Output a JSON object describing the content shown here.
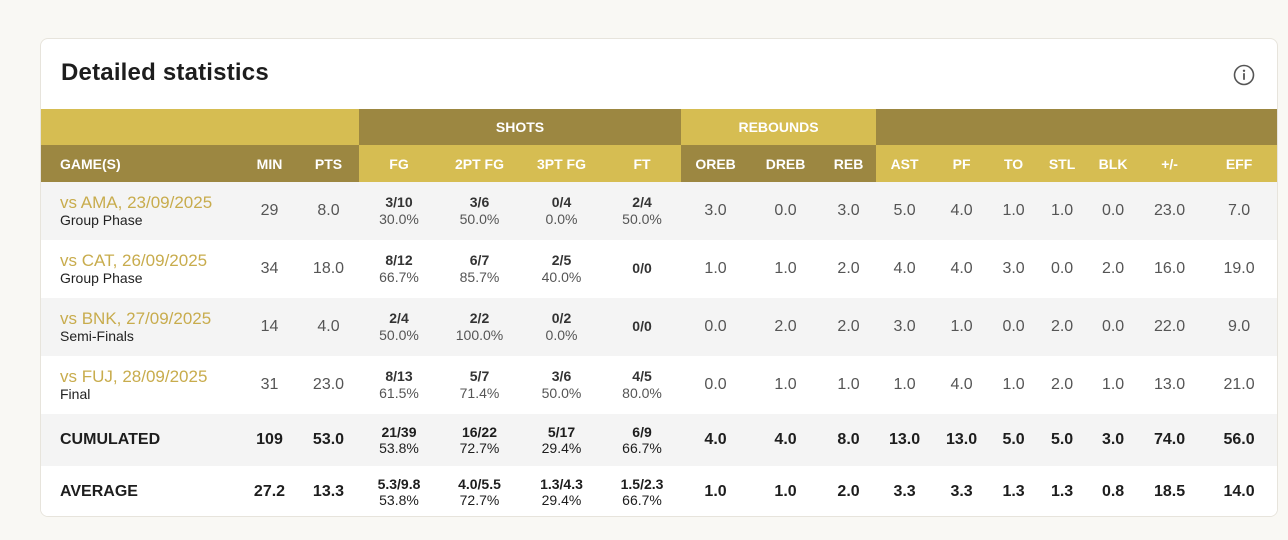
{
  "title": "Detailed statistics",
  "groups": {
    "shots": "SHOTS",
    "rebounds": "REBOUNDS"
  },
  "columns": [
    "GAME(S)",
    "MIN",
    "PTS",
    "FG",
    "2PT FG",
    "3PT FG",
    "FT",
    "OREB",
    "DREB",
    "REB",
    "AST",
    "PF",
    "TO",
    "STL",
    "BLK",
    "+/-",
    "EFF"
  ],
  "games": [
    {
      "opponent": "vs AMA, 23/09/2025",
      "phase": "Group Phase",
      "min": "29",
      "pts": "8.0",
      "fg": {
        "made": "3/10",
        "pct": "30.0%"
      },
      "fg2": {
        "made": "3/6",
        "pct": "50.0%"
      },
      "fg3": {
        "made": "0/4",
        "pct": "0.0%"
      },
      "ft": {
        "made": "2/4",
        "pct": "50.0%"
      },
      "oreb": "3.0",
      "dreb": "0.0",
      "reb": "3.0",
      "ast": "5.0",
      "pf": "4.0",
      "to": "1.0",
      "stl": "1.0",
      "blk": "0.0",
      "pm": "23.0",
      "eff": "7.0"
    },
    {
      "opponent": "vs CAT, 26/09/2025",
      "phase": "Group Phase",
      "min": "34",
      "pts": "18.0",
      "fg": {
        "made": "8/12",
        "pct": "66.7%"
      },
      "fg2": {
        "made": "6/7",
        "pct": "85.7%"
      },
      "fg3": {
        "made": "2/5",
        "pct": "40.0%"
      },
      "ft": {
        "made": "0/0",
        "pct": ""
      },
      "oreb": "1.0",
      "dreb": "1.0",
      "reb": "2.0",
      "ast": "4.0",
      "pf": "4.0",
      "to": "3.0",
      "stl": "0.0",
      "blk": "2.0",
      "pm": "16.0",
      "eff": "19.0"
    },
    {
      "opponent": "vs BNK, 27/09/2025",
      "phase": "Semi-Finals",
      "min": "14",
      "pts": "4.0",
      "fg": {
        "made": "2/4",
        "pct": "50.0%"
      },
      "fg2": {
        "made": "2/2",
        "pct": "100.0%"
      },
      "fg3": {
        "made": "0/2",
        "pct": "0.0%"
      },
      "ft": {
        "made": "0/0",
        "pct": ""
      },
      "oreb": "0.0",
      "dreb": "2.0",
      "reb": "2.0",
      "ast": "3.0",
      "pf": "1.0",
      "to": "0.0",
      "stl": "2.0",
      "blk": "0.0",
      "pm": "22.0",
      "eff": "9.0"
    },
    {
      "opponent": "vs FUJ, 28/09/2025",
      "phase": "Final",
      "min": "31",
      "pts": "23.0",
      "fg": {
        "made": "8/13",
        "pct": "61.5%"
      },
      "fg2": {
        "made": "5/7",
        "pct": "71.4%"
      },
      "fg3": {
        "made": "3/6",
        "pct": "50.0%"
      },
      "ft": {
        "made": "4/5",
        "pct": "80.0%"
      },
      "oreb": "0.0",
      "dreb": "1.0",
      "reb": "1.0",
      "ast": "1.0",
      "pf": "4.0",
      "to": "1.0",
      "stl": "2.0",
      "blk": "1.0",
      "pm": "13.0",
      "eff": "21.0"
    }
  ],
  "cumulated": {
    "label": "CUMULATED",
    "min": "109",
    "pts": "53.0",
    "fg": {
      "made": "21/39",
      "pct": "53.8%"
    },
    "fg2": {
      "made": "16/22",
      "pct": "72.7%"
    },
    "fg3": {
      "made": "5/17",
      "pct": "29.4%"
    },
    "ft": {
      "made": "6/9",
      "pct": "66.7%"
    },
    "oreb": "4.0",
    "dreb": "4.0",
    "reb": "8.0",
    "ast": "13.0",
    "pf": "13.0",
    "to": "5.0",
    "stl": "5.0",
    "blk": "3.0",
    "pm": "74.0",
    "eff": "56.0"
  },
  "average": {
    "label": "AVERAGE",
    "min": "27.2",
    "pts": "13.3",
    "fg": {
      "made": "5.3/9.8",
      "pct": "53.8%"
    },
    "fg2": {
      "made": "4.0/5.5",
      "pct": "72.7%"
    },
    "fg3": {
      "made": "1.3/4.3",
      "pct": "29.4%"
    },
    "ft": {
      "made": "1.5/2.3",
      "pct": "66.7%"
    },
    "oreb": "1.0",
    "dreb": "1.0",
    "reb": "2.0",
    "ast": "3.3",
    "pf": "3.3",
    "to": "1.3",
    "stl": "1.3",
    "blk": "0.8",
    "pm": "18.5",
    "eff": "14.0"
  },
  "colors": {
    "gold": "#d6bd52",
    "olive": "#9c8741",
    "link": "#c8ac4d"
  },
  "icons": {
    "info": "info-icon"
  }
}
